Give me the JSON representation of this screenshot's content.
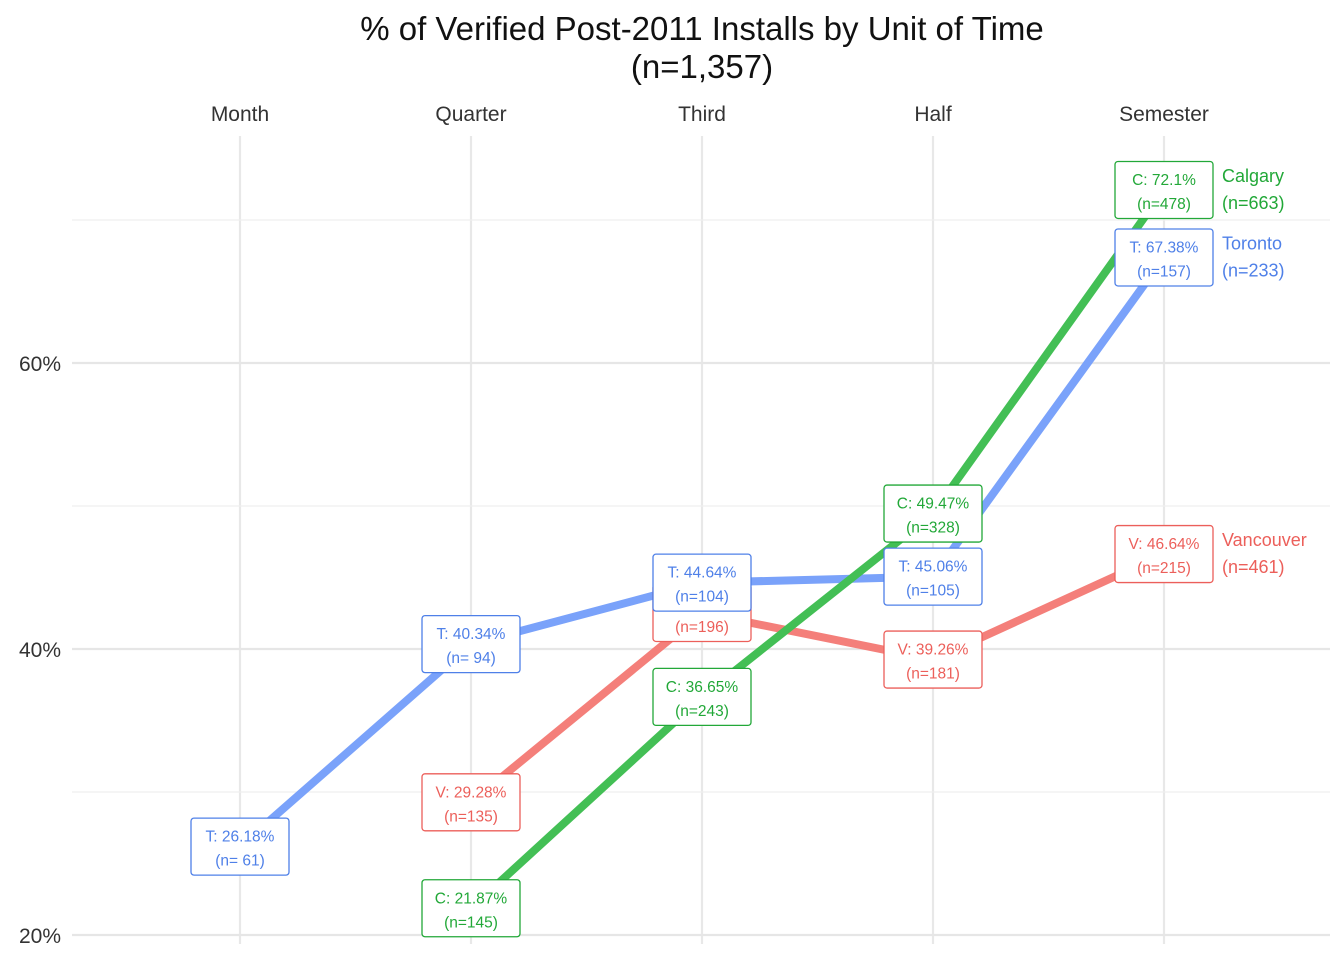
{
  "chart_data": {
    "type": "line",
    "title": "% of Verified Post-2011 Installs by Unit of Time",
    "subtitle": "(n=1,357)",
    "categories": [
      "Month",
      "Quarter",
      "Third",
      "Half",
      "Semester"
    ],
    "x_axis_position": "top",
    "y_ticks": [
      {
        "value": 20,
        "label": "20%"
      },
      {
        "value": 40,
        "label": "40%"
      },
      {
        "value": 60,
        "label": "60%"
      }
    ],
    "y_minor_gridlines": [
      30,
      50,
      70
    ],
    "ylim": [
      20,
      72.1
    ],
    "grid": true,
    "legend": "none",
    "series": [
      {
        "name": "Calgary",
        "n_label": "(n=663)",
        "color": "#43BF55",
        "text_color": "#22A838",
        "points": [
          {
            "category": "Quarter",
            "value": 21.87,
            "label": "C: 21.87%",
            "n": "(n=145)"
          },
          {
            "category": "Third",
            "value": 36.65,
            "label": "C: 36.65%",
            "n": "(n=243)"
          },
          {
            "category": "Half",
            "value": 49.47,
            "label": "C: 49.47%",
            "n": "(n=328)"
          },
          {
            "category": "Semester",
            "value": 72.1,
            "label": "C: 72.1%",
            "n": "(n=478)"
          }
        ]
      },
      {
        "name": "Toronto",
        "n_label": "(n=233)",
        "color": "#7AA2FA",
        "text_color": "#4F80E8",
        "points": [
          {
            "category": "Month",
            "value": 26.18,
            "label": "T: 26.18%",
            "n": "(n= 61)"
          },
          {
            "category": "Quarter",
            "value": 40.34,
            "label": "T: 40.34%",
            "n": "(n= 94)"
          },
          {
            "category": "Third",
            "value": 44.64,
            "label": "T: 44.64%",
            "n": "(n=104)"
          },
          {
            "category": "Half",
            "value": 45.06,
            "label": "T: 45.06%",
            "n": "(n=105)"
          },
          {
            "category": "Semester",
            "value": 67.38,
            "label": "T: 67.38%",
            "n": "(n=157)"
          }
        ]
      },
      {
        "name": "Vancouver",
        "n_label": "(n=461)",
        "color": "#F47F7A",
        "text_color": "#EC5F5A",
        "points": [
          {
            "category": "Quarter",
            "value": 29.28,
            "label": "V: 29.28%",
            "n": "(n=135)"
          },
          {
            "category": "Third",
            "value": 42.52,
            "label": "V: 42.52%",
            "n": "(n=196)"
          },
          {
            "category": "Half",
            "value": 39.26,
            "label": "V: 39.26%",
            "n": "(n=181)"
          },
          {
            "category": "Semester",
            "value": 46.64,
            "label": "V: 46.64%",
            "n": "(n=215)"
          }
        ]
      }
    ]
  }
}
